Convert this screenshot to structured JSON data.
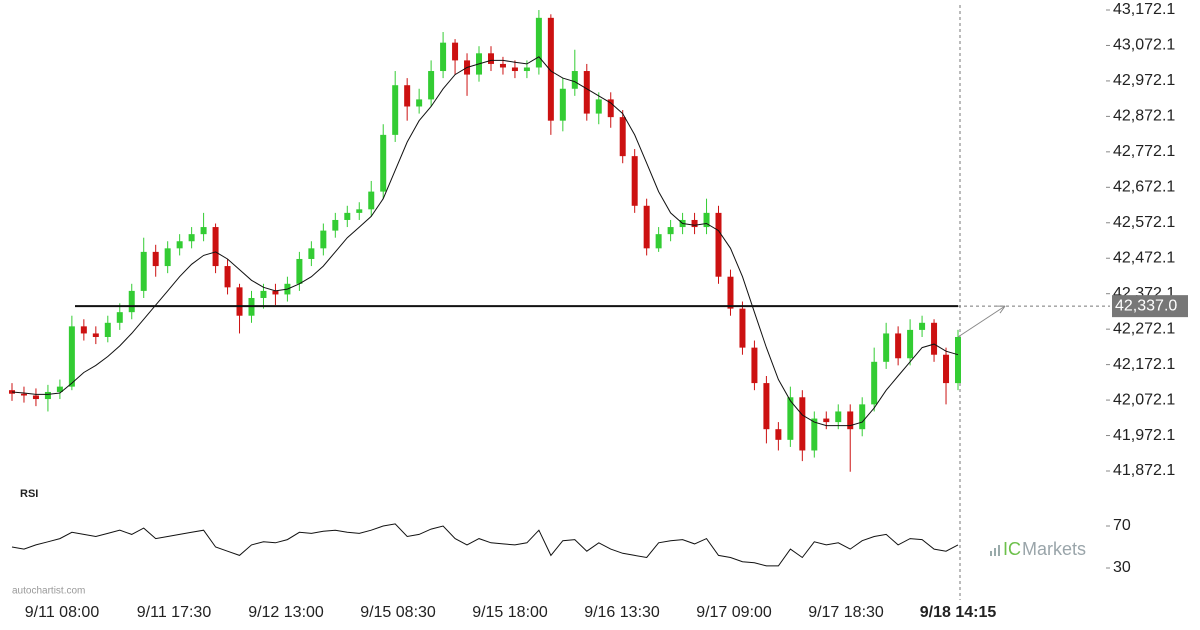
{
  "chart_data": {
    "type": "candlestick",
    "watermark": "autochartist.com",
    "brand": [
      "IC",
      "Markets"
    ],
    "up_color": "#33cc33",
    "down_color": "#cc1111",
    "ma_color": "#111111",
    "ylim": [
      41872.1,
      43172.1
    ],
    "yticks": [
      {
        "value": 43172.1,
        "label": "43,172.1"
      },
      {
        "value": 43072.1,
        "label": "43,072.1"
      },
      {
        "value": 42972.1,
        "label": "42,972.1"
      },
      {
        "value": 42872.1,
        "label": "42,872.1"
      },
      {
        "value": 42772.1,
        "label": "42,772.1"
      },
      {
        "value": 42672.1,
        "label": "42,672.1"
      },
      {
        "value": 42572.1,
        "label": "42,572.1"
      },
      {
        "value": 42472.1,
        "label": "42,472.1"
      },
      {
        "value": 42372.1,
        "label": "42,372.1"
      },
      {
        "value": 42272.1,
        "label": "42,272.1"
      },
      {
        "value": 42172.1,
        "label": "42,172.1"
      },
      {
        "value": 42072.1,
        "label": "42,072.1"
      },
      {
        "value": 41972.1,
        "label": "41,972.1"
      },
      {
        "value": 41872.1,
        "label": "41,872.1"
      }
    ],
    "level": {
      "value": 42337.0,
      "label": "42,337.0"
    },
    "categories": [
      "9/11 08:00",
      "9/11 17:30",
      "9/12 13:00",
      "9/15 08:30",
      "9/15 18:00",
      "9/16 13:30",
      "9/17 09:00",
      "9/17 18:30",
      "9/18 14:15"
    ],
    "open": [
      42100,
      42090,
      42085,
      42075,
      42095,
      42110,
      42280,
      42260,
      42250,
      42290,
      42320,
      42380,
      42490,
      42450,
      42500,
      42520,
      42540,
      42560,
      42450,
      42390,
      42310,
      42360,
      42380,
      42370,
      42400,
      42470,
      42500,
      42550,
      42580,
      42600,
      42610,
      42660,
      42820,
      42960,
      42900,
      42920,
      43000,
      43080,
      43030,
      42990,
      43050,
      43020,
      43010,
      43000,
      43010,
      43150,
      42860,
      42950,
      43000,
      42880,
      42920,
      42870,
      42760,
      42620,
      42500,
      42540,
      42560,
      42580,
      42560,
      42600,
      42420,
      42330,
      42220,
      42120,
      41990,
      41960,
      42080,
      41930,
      42020,
      42010,
      42040,
      41990,
      42060,
      42180,
      42260,
      42190,
      42270,
      42290,
      42200,
      42120
    ],
    "high": [
      42120,
      42110,
      42105,
      42115,
      42130,
      42310,
      42300,
      42280,
      42310,
      42345,
      42400,
      42530,
      42510,
      42520,
      42540,
      42560,
      42600,
      42570,
      42470,
      42400,
      42380,
      42400,
      42400,
      42420,
      42490,
      42520,
      42570,
      42600,
      42620,
      42630,
      42690,
      42850,
      43000,
      42980,
      42950,
      43030,
      43110,
      43090,
      43050,
      43070,
      43070,
      43040,
      43030,
      43030,
      43172,
      43160,
      42980,
      43060,
      43020,
      42940,
      42940,
      42890,
      42780,
      42640,
      42560,
      42580,
      42600,
      42600,
      42640,
      42620,
      42440,
      42350,
      42240,
      42140,
      42010,
      42110,
      42100,
      42040,
      42040,
      42060,
      42060,
      42080,
      42220,
      42290,
      42280,
      42300,
      42310,
      42300,
      42220,
      42270
    ],
    "low": [
      42070,
      42065,
      42055,
      42040,
      42075,
      42100,
      42240,
      42230,
      42235,
      42270,
      42300,
      42360,
      42420,
      42430,
      42480,
      42500,
      42520,
      42430,
      42370,
      42260,
      42290,
      42330,
      42340,
      42350,
      42380,
      42450,
      42480,
      42530,
      42560,
      42580,
      42590,
      42640,
      42800,
      42860,
      42880,
      42900,
      42980,
      42990,
      42930,
      42970,
      43000,
      42990,
      42980,
      42980,
      42990,
      42820,
      42830,
      42930,
      42860,
      42850,
      42840,
      42740,
      42600,
      42480,
      42490,
      42520,
      42540,
      42540,
      42540,
      42400,
      42310,
      42200,
      42100,
      41950,
      41930,
      41940,
      41900,
      41910,
      41990,
      41990,
      41870,
      41970,
      42040,
      42160,
      42170,
      42170,
      42250,
      42180,
      42060,
      42100
    ],
    "close": [
      42090,
      42085,
      42075,
      42095,
      42110,
      42280,
      42260,
      42250,
      42290,
      42320,
      42380,
      42490,
      42450,
      42500,
      42520,
      42540,
      42560,
      42450,
      42390,
      42310,
      42360,
      42380,
      42370,
      42400,
      42470,
      42500,
      42550,
      42580,
      42600,
      42610,
      42660,
      42820,
      42960,
      42900,
      42920,
      43000,
      43080,
      43030,
      42990,
      43050,
      43020,
      43010,
      43000,
      43010,
      43150,
      42860,
      42950,
      43000,
      42880,
      42920,
      42870,
      42760,
      42620,
      42500,
      42540,
      42560,
      42580,
      42560,
      42600,
      42420,
      42330,
      42220,
      42120,
      41990,
      41960,
      42080,
      41930,
      42020,
      42010,
      42040,
      41990,
      42060,
      42180,
      42260,
      42190,
      42270,
      42290,
      42200,
      42120,
      42250
    ],
    "ma": [
      42095,
      42092,
      42088,
      42088,
      42092,
      42120,
      42150,
      42170,
      42195,
      42225,
      42260,
      42300,
      42340,
      42380,
      42420,
      42455,
      42480,
      42490,
      42470,
      42440,
      42410,
      42390,
      42380,
      42385,
      42400,
      42420,
      42450,
      42490,
      42530,
      42560,
      42590,
      42640,
      42720,
      42800,
      42860,
      42900,
      42950,
      42990,
      43010,
      43020,
      43030,
      43030,
      43025,
      43020,
      43040,
      43000,
      42980,
      42970,
      42950,
      42930,
      42910,
      42880,
      42820,
      42740,
      42660,
      42600,
      42570,
      42565,
      42570,
      42550,
      42500,
      42420,
      42320,
      42220,
      42130,
      42070,
      42030,
      42010,
      42000,
      42000,
      42000,
      42010,
      42050,
      42100,
      42140,
      42180,
      42220,
      42230,
      42210,
      42200
    ],
    "rsi": {
      "title": "RSI",
      "ylim": [
        30,
        70
      ],
      "yticks": [
        70,
        30
      ],
      "values": [
        50,
        48,
        52,
        55,
        58,
        64,
        62,
        60,
        63,
        66,
        62,
        68,
        58,
        60,
        62,
        64,
        66,
        50,
        46,
        42,
        52,
        55,
        54,
        57,
        64,
        63,
        65,
        66,
        64,
        63,
        66,
        70,
        72,
        60,
        62,
        67,
        70,
        58,
        52,
        58,
        54,
        53,
        52,
        54,
        66,
        42,
        56,
        57,
        46,
        54,
        48,
        44,
        42,
        40,
        54,
        56,
        57,
        53,
        58,
        42,
        40,
        36,
        35,
        32,
        32,
        48,
        40,
        55,
        52,
        54,
        48,
        56,
        60,
        62,
        52,
        58,
        57,
        48,
        46,
        52
      ]
    }
  }
}
